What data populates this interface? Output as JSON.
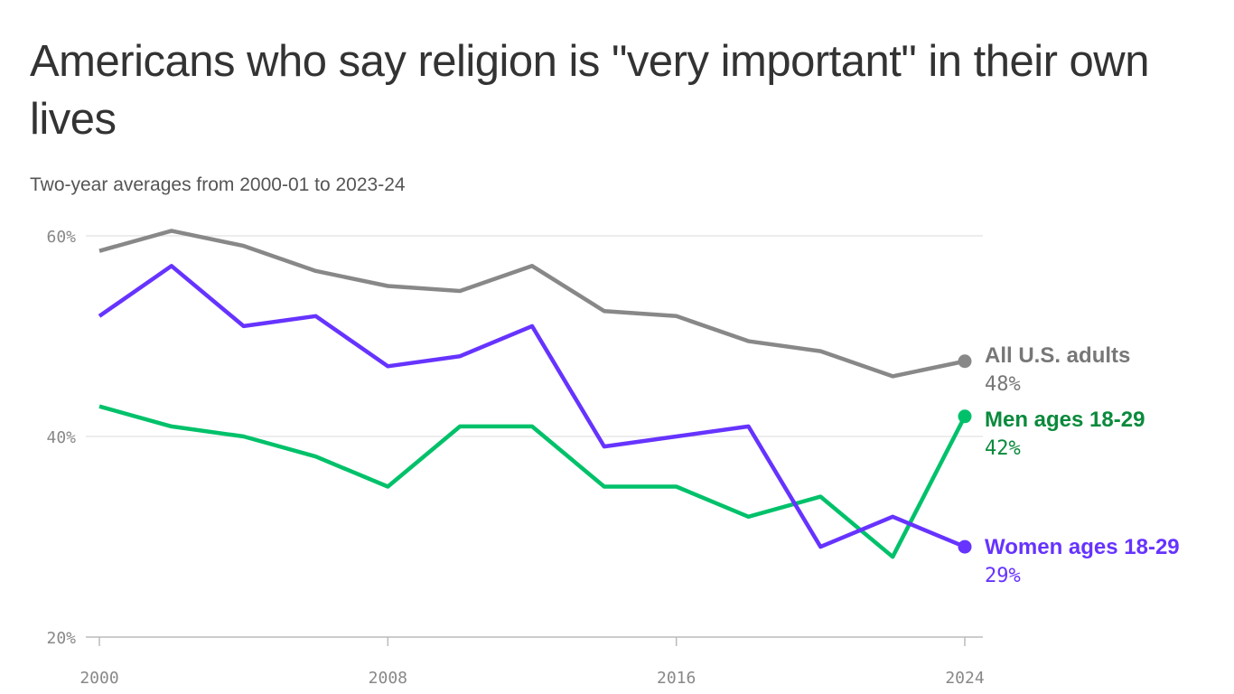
{
  "chart_data": {
    "type": "line",
    "title": "Americans who say religion is \"very important\" in their own lives",
    "subtitle": "Two-year averages from 2000-01 to 2023-24",
    "x": [
      2000,
      2002,
      2004,
      2006,
      2008,
      2010,
      2012,
      2014,
      2016,
      2018,
      2020,
      2022,
      2024
    ],
    "xticks": [
      2000,
      2008,
      2016,
      2024
    ],
    "xtick_labels": [
      "2000",
      "2008",
      "2016",
      "2024"
    ],
    "yticks": [
      20,
      40,
      60
    ],
    "ytick_labels": [
      "20%",
      "40%",
      "60%"
    ],
    "ylim": [
      20,
      60
    ],
    "grid": true,
    "series": [
      {
        "name": "All U.S. adults",
        "end_label": "48%",
        "color": "#888888",
        "label_color": "#777777",
        "values": [
          58.5,
          60.5,
          59,
          56.5,
          55,
          54.5,
          57,
          52.5,
          52,
          49.5,
          48.5,
          46,
          47.5
        ]
      },
      {
        "name": "Men ages 18-29",
        "end_label": "42%",
        "color": "#00c16a",
        "label_color": "#0a8a3c",
        "values": [
          43,
          41,
          40,
          38,
          35,
          41,
          41,
          35,
          35,
          32,
          34,
          28,
          42
        ]
      },
      {
        "name": "Women ages 18-29",
        "end_label": "29%",
        "color": "#6633ff",
        "label_color": "#6633ff",
        "values": [
          52,
          57,
          51,
          52,
          47,
          48,
          51,
          39,
          40,
          41,
          29,
          32,
          29
        ]
      }
    ]
  }
}
